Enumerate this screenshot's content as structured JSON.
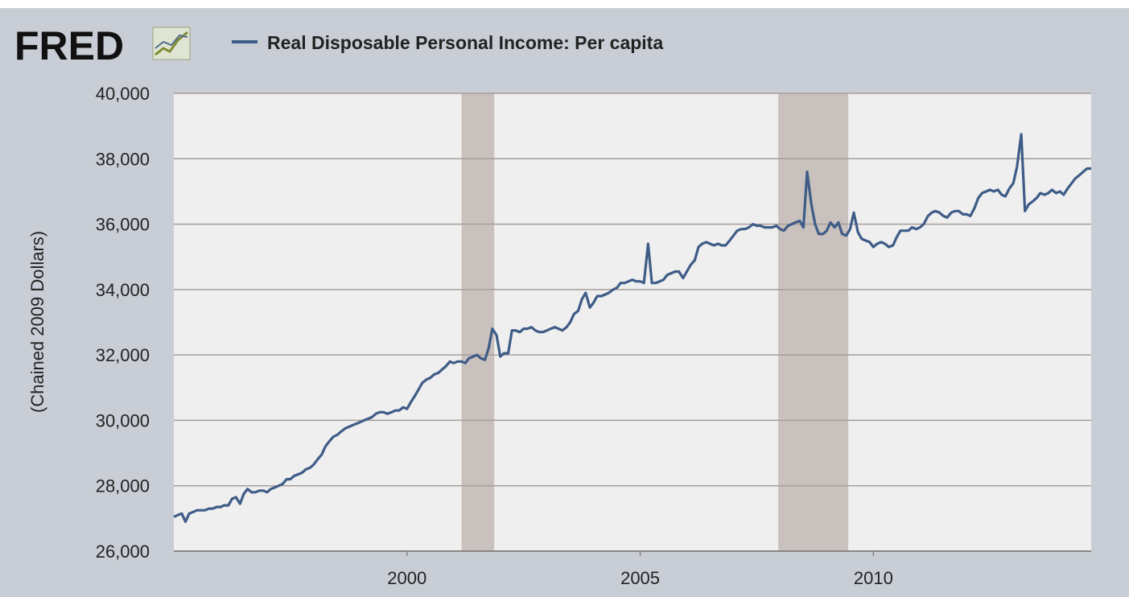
{
  "branding": {
    "logo_text": "FRED",
    "logo_icon": "line-chart-icon"
  },
  "chart_data": {
    "type": "line",
    "title": "",
    "ylabel": "(Chained 2009 Dollars)",
    "xlabel": "",
    "ylim": [
      26000,
      40000
    ],
    "xlim": [
      1995.0,
      2014.67
    ],
    "y_ticks": [
      {
        "value": 26000,
        "label": "26,000"
      },
      {
        "value": 28000,
        "label": "28,000"
      },
      {
        "value": 30000,
        "label": "30,000"
      },
      {
        "value": 32000,
        "label": "32,000"
      },
      {
        "value": 34000,
        "label": "34,000"
      },
      {
        "value": 36000,
        "label": "36,000"
      },
      {
        "value": 38000,
        "label": "38,000"
      },
      {
        "value": 40000,
        "label": "40,000"
      }
    ],
    "x_ticks": [
      {
        "value": 2000,
        "label": "2000"
      },
      {
        "value": 2005,
        "label": "2005"
      },
      {
        "value": 2010,
        "label": "2010"
      }
    ],
    "grid": true,
    "legend_position": "top",
    "recessions": [
      {
        "start": 2001.17,
        "end": 2001.87
      },
      {
        "start": 2007.96,
        "end": 2009.46
      }
    ],
    "colors": {
      "line": "#3e5c87",
      "plot_bg": "#efefef",
      "grid": "#a89e9c",
      "recession": "#c9c1bd",
      "frame_bg": "#c9ced6"
    },
    "series": [
      {
        "name": "Real Disposable Personal Income: Per capita",
        "points": [
          [
            1995.0,
            27050
          ],
          [
            1995.08,
            27100
          ],
          [
            1995.17,
            27150
          ],
          [
            1995.25,
            26900
          ],
          [
            1995.33,
            27150
          ],
          [
            1995.42,
            27200
          ],
          [
            1995.5,
            27250
          ],
          [
            1995.58,
            27250
          ],
          [
            1995.67,
            27250
          ],
          [
            1995.75,
            27300
          ],
          [
            1995.83,
            27300
          ],
          [
            1995.92,
            27350
          ],
          [
            1996.0,
            27350
          ],
          [
            1996.08,
            27400
          ],
          [
            1996.17,
            27400
          ],
          [
            1996.25,
            27600
          ],
          [
            1996.33,
            27650
          ],
          [
            1996.42,
            27450
          ],
          [
            1996.5,
            27750
          ],
          [
            1996.58,
            27900
          ],
          [
            1996.67,
            27800
          ],
          [
            1996.75,
            27800
          ],
          [
            1996.83,
            27850
          ],
          [
            1996.92,
            27850
          ],
          [
            1997.0,
            27800
          ],
          [
            1997.08,
            27900
          ],
          [
            1997.17,
            27950
          ],
          [
            1997.25,
            28000
          ],
          [
            1997.33,
            28050
          ],
          [
            1997.42,
            28200
          ],
          [
            1997.5,
            28200
          ],
          [
            1997.58,
            28300
          ],
          [
            1997.67,
            28350
          ],
          [
            1997.75,
            28400
          ],
          [
            1997.83,
            28500
          ],
          [
            1997.92,
            28550
          ],
          [
            1998.0,
            28650
          ],
          [
            1998.08,
            28800
          ],
          [
            1998.17,
            28950
          ],
          [
            1998.25,
            29200
          ],
          [
            1998.33,
            29350
          ],
          [
            1998.42,
            29500
          ],
          [
            1998.5,
            29550
          ],
          [
            1998.58,
            29650
          ],
          [
            1998.67,
            29750
          ],
          [
            1998.75,
            29800
          ],
          [
            1998.83,
            29850
          ],
          [
            1998.92,
            29900
          ],
          [
            1999.0,
            29950
          ],
          [
            1999.08,
            30000
          ],
          [
            1999.17,
            30050
          ],
          [
            1999.25,
            30100
          ],
          [
            1999.33,
            30200
          ],
          [
            1999.42,
            30250
          ],
          [
            1999.5,
            30250
          ],
          [
            1999.58,
            30200
          ],
          [
            1999.67,
            30250
          ],
          [
            1999.75,
            30300
          ],
          [
            1999.83,
            30300
          ],
          [
            1999.92,
            30400
          ],
          [
            2000.0,
            30350
          ],
          [
            2000.08,
            30550
          ],
          [
            2000.17,
            30750
          ],
          [
            2000.25,
            30950
          ],
          [
            2000.33,
            31150
          ],
          [
            2000.42,
            31250
          ],
          [
            2000.5,
            31300
          ],
          [
            2000.58,
            31400
          ],
          [
            2000.67,
            31450
          ],
          [
            2000.75,
            31550
          ],
          [
            2000.83,
            31650
          ],
          [
            2000.92,
            31800
          ],
          [
            2001.0,
            31750
          ],
          [
            2001.08,
            31800
          ],
          [
            2001.17,
            31800
          ],
          [
            2001.25,
            31750
          ],
          [
            2001.33,
            31900
          ],
          [
            2001.42,
            31950
          ],
          [
            2001.5,
            32000
          ],
          [
            2001.58,
            31900
          ],
          [
            2001.67,
            31850
          ],
          [
            2001.75,
            32200
          ],
          [
            2001.83,
            32800
          ],
          [
            2001.92,
            32600
          ],
          [
            2002.0,
            31950
          ],
          [
            2002.08,
            32050
          ],
          [
            2002.17,
            32050
          ],
          [
            2002.25,
            32750
          ],
          [
            2002.33,
            32750
          ],
          [
            2002.42,
            32700
          ],
          [
            2002.5,
            32800
          ],
          [
            2002.58,
            32800
          ],
          [
            2002.67,
            32850
          ],
          [
            2002.75,
            32750
          ],
          [
            2002.83,
            32700
          ],
          [
            2002.92,
            32700
          ],
          [
            2003.0,
            32750
          ],
          [
            2003.08,
            32800
          ],
          [
            2003.17,
            32850
          ],
          [
            2003.25,
            32800
          ],
          [
            2003.33,
            32750
          ],
          [
            2003.42,
            32850
          ],
          [
            2003.5,
            33000
          ],
          [
            2003.58,
            33250
          ],
          [
            2003.67,
            33350
          ],
          [
            2003.75,
            33700
          ],
          [
            2003.83,
            33900
          ],
          [
            2003.92,
            33450
          ],
          [
            2004.0,
            33600
          ],
          [
            2004.08,
            33800
          ],
          [
            2004.17,
            33800
          ],
          [
            2004.25,
            33850
          ],
          [
            2004.33,
            33900
          ],
          [
            2004.42,
            34000
          ],
          [
            2004.5,
            34050
          ],
          [
            2004.58,
            34200
          ],
          [
            2004.67,
            34200
          ],
          [
            2004.75,
            34250
          ],
          [
            2004.83,
            34300
          ],
          [
            2004.92,
            34250
          ],
          [
            2005.0,
            34250
          ],
          [
            2005.08,
            34200
          ],
          [
            2005.17,
            35400
          ],
          [
            2005.25,
            34200
          ],
          [
            2005.33,
            34200
          ],
          [
            2005.42,
            34250
          ],
          [
            2005.5,
            34300
          ],
          [
            2005.58,
            34450
          ],
          [
            2005.67,
            34500
          ],
          [
            2005.75,
            34550
          ],
          [
            2005.83,
            34550
          ],
          [
            2005.92,
            34350
          ],
          [
            2006.0,
            34550
          ],
          [
            2006.08,
            34750
          ],
          [
            2006.17,
            34900
          ],
          [
            2006.25,
            35300
          ],
          [
            2006.33,
            35400
          ],
          [
            2006.42,
            35450
          ],
          [
            2006.5,
            35400
          ],
          [
            2006.58,
            35350
          ],
          [
            2006.67,
            35400
          ],
          [
            2006.75,
            35350
          ],
          [
            2006.83,
            35350
          ],
          [
            2006.92,
            35500
          ],
          [
            2007.0,
            35650
          ],
          [
            2007.08,
            35800
          ],
          [
            2007.17,
            35850
          ],
          [
            2007.25,
            35850
          ],
          [
            2007.33,
            35900
          ],
          [
            2007.42,
            36000
          ],
          [
            2007.5,
            35950
          ],
          [
            2007.58,
            35950
          ],
          [
            2007.67,
            35900
          ],
          [
            2007.75,
            35900
          ],
          [
            2007.83,
            35900
          ],
          [
            2007.92,
            35950
          ],
          [
            2008.0,
            35850
          ],
          [
            2008.08,
            35800
          ],
          [
            2008.17,
            35950
          ],
          [
            2008.25,
            36000
          ],
          [
            2008.33,
            36050
          ],
          [
            2008.42,
            36100
          ],
          [
            2008.5,
            35900
          ],
          [
            2008.58,
            37600
          ],
          [
            2008.67,
            36600
          ],
          [
            2008.75,
            36000
          ],
          [
            2008.83,
            35700
          ],
          [
            2008.92,
            35700
          ],
          [
            2009.0,
            35800
          ],
          [
            2009.08,
            36050
          ],
          [
            2009.17,
            35900
          ],
          [
            2009.25,
            36050
          ],
          [
            2009.33,
            35700
          ],
          [
            2009.42,
            35650
          ],
          [
            2009.5,
            35850
          ],
          [
            2009.58,
            36350
          ],
          [
            2009.67,
            35750
          ],
          [
            2009.75,
            35550
          ],
          [
            2009.83,
            35500
          ],
          [
            2009.92,
            35450
          ],
          [
            2010.0,
            35300
          ],
          [
            2010.08,
            35400
          ],
          [
            2010.17,
            35450
          ],
          [
            2010.25,
            35400
          ],
          [
            2010.33,
            35300
          ],
          [
            2010.42,
            35350
          ],
          [
            2010.5,
            35600
          ],
          [
            2010.58,
            35800
          ],
          [
            2010.67,
            35800
          ],
          [
            2010.75,
            35800
          ],
          [
            2010.83,
            35900
          ],
          [
            2010.92,
            35850
          ],
          [
            2011.0,
            35900
          ],
          [
            2011.08,
            36000
          ],
          [
            2011.17,
            36250
          ],
          [
            2011.25,
            36350
          ],
          [
            2011.33,
            36400
          ],
          [
            2011.42,
            36350
          ],
          [
            2011.5,
            36250
          ],
          [
            2011.58,
            36200
          ],
          [
            2011.67,
            36350
          ],
          [
            2011.75,
            36400
          ],
          [
            2011.83,
            36400
          ],
          [
            2011.92,
            36300
          ],
          [
            2012.0,
            36300
          ],
          [
            2012.08,
            36250
          ],
          [
            2012.17,
            36500
          ],
          [
            2012.25,
            36800
          ],
          [
            2012.33,
            36950
          ],
          [
            2012.42,
            37000
          ],
          [
            2012.5,
            37050
          ],
          [
            2012.58,
            37000
          ],
          [
            2012.67,
            37050
          ],
          [
            2012.75,
            36900
          ],
          [
            2012.83,
            36850
          ],
          [
            2012.92,
            37100
          ],
          [
            2013.0,
            37250
          ],
          [
            2013.08,
            37750
          ],
          [
            2013.17,
            38750
          ],
          [
            2013.25,
            36400
          ],
          [
            2013.33,
            36600
          ],
          [
            2013.42,
            36700
          ],
          [
            2013.5,
            36800
          ],
          [
            2013.58,
            36950
          ],
          [
            2013.67,
            36900
          ],
          [
            2013.75,
            36950
          ],
          [
            2013.83,
            37050
          ],
          [
            2013.92,
            36950
          ],
          [
            2014.0,
            37000
          ],
          [
            2014.08,
            36900
          ],
          [
            2014.17,
            37100
          ],
          [
            2014.25,
            37250
          ],
          [
            2014.33,
            37400
          ],
          [
            2014.42,
            37500
          ],
          [
            2014.5,
            37600
          ],
          [
            2014.58,
            37700
          ],
          [
            2014.67,
            37700
          ]
        ]
      }
    ]
  }
}
